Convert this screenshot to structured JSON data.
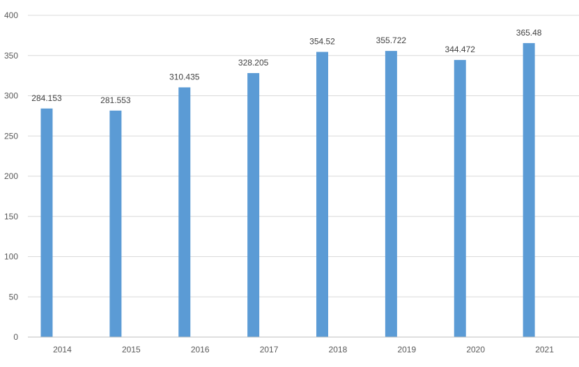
{
  "chart_data": {
    "type": "bar",
    "title": "",
    "xlabel": "",
    "ylabel": "",
    "categories": [
      "2014",
      "2015",
      "2016",
      "2017",
      "2018",
      "2019",
      "2020",
      "2021"
    ],
    "series": [
      {
        "values": [
          284.153,
          281.553,
          310.435,
          328.205,
          354.52,
          355.722,
          344.472,
          365.48
        ],
        "color": "#5b9bd5"
      }
    ],
    "data_labels": [
      "284.153",
      "281.553",
      "310.435",
      "328.205",
      "354.52",
      "355.722",
      "344.472",
      "365.48"
    ],
    "ylim": [
      0,
      400
    ],
    "yticks": [
      0,
      50,
      100,
      150,
      200,
      250,
      300,
      350,
      400
    ],
    "ytick_labels": [
      "0",
      "50",
      "100",
      "150",
      "200",
      "250",
      "300",
      "350",
      "400"
    ],
    "grid": true,
    "gridline_color": "#d9d9d9",
    "axis_line_color": "#bfbfbf",
    "text_color": "#595959",
    "legend": "none"
  }
}
